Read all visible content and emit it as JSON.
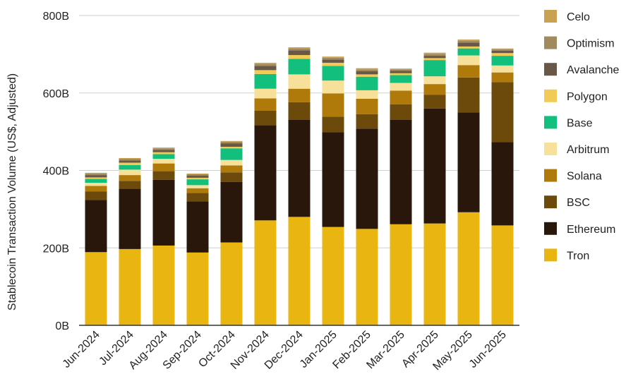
{
  "chart_data": {
    "type": "bar",
    "stacked": true,
    "title": "",
    "xlabel": "",
    "ylabel": "Stablecoin Transaction Volume (US$, Adjusted)",
    "ylim": [
      0,
      800
    ],
    "yticks": [
      0,
      200,
      400,
      600,
      800
    ],
    "ytick_labels": [
      "0B",
      "200B",
      "400B",
      "600B",
      "800B"
    ],
    "grid": true,
    "legend_position": "right",
    "categories": [
      "Jun-2024",
      "Jul-2024",
      "Aug-2024",
      "Sep-2024",
      "Oct-2024",
      "Nov-2024",
      "Dec-2024",
      "Jan-2025",
      "Feb-2025",
      "Mar-2025",
      "Apr-2025",
      "May-2025",
      "Jun-2025"
    ],
    "series": [
      {
        "name": "Tron",
        "color": "#E9B611",
        "values": [
          189,
          197,
          206,
          188,
          214,
          271,
          280,
          254,
          249,
          261,
          263,
          292,
          258
        ]
      },
      {
        "name": "Ethereum",
        "color": "#2A170B",
        "values": [
          135,
          156,
          170,
          132,
          156,
          246,
          251,
          245,
          259,
          270,
          297,
          258,
          215
        ]
      },
      {
        "name": "BSC",
        "color": "#6B4A0C",
        "values": [
          22,
          20,
          22,
          22,
          25,
          37,
          45,
          40,
          37,
          40,
          35,
          90,
          155
        ]
      },
      {
        "name": "Solana",
        "color": "#B07A0B",
        "values": [
          14,
          15,
          20,
          12,
          18,
          32,
          35,
          60,
          40,
          35,
          28,
          32,
          25
        ]
      },
      {
        "name": "Arbitrum",
        "color": "#F7E19A",
        "values": [
          8,
          14,
          12,
          8,
          14,
          25,
          37,
          33,
          22,
          20,
          20,
          25,
          18
        ]
      },
      {
        "name": "Base",
        "color": "#12BF7C",
        "values": [
          10,
          12,
          12,
          15,
          30,
          38,
          40,
          38,
          35,
          20,
          42,
          18,
          25
        ]
      },
      {
        "name": "Polygon",
        "color": "#F2CB56",
        "values": [
          4,
          6,
          5,
          4,
          4,
          10,
          10,
          8,
          6,
          5,
          5,
          5,
          7
        ]
      },
      {
        "name": "Avalanche",
        "color": "#695748",
        "values": [
          6,
          6,
          6,
          6,
          9,
          11,
          12,
          8,
          8,
          6,
          6,
          10,
          6
        ]
      },
      {
        "name": "Optimism",
        "color": "#A08A5E",
        "values": [
          4,
          4,
          4,
          3,
          4,
          5,
          5,
          5,
          5,
          4,
          5,
          5,
          4
        ]
      },
      {
        "name": "Celo",
        "color": "#C9A151",
        "values": [
          2,
          2,
          2,
          2,
          2,
          3,
          3,
          3,
          3,
          2,
          3,
          3,
          2
        ]
      }
    ]
  }
}
